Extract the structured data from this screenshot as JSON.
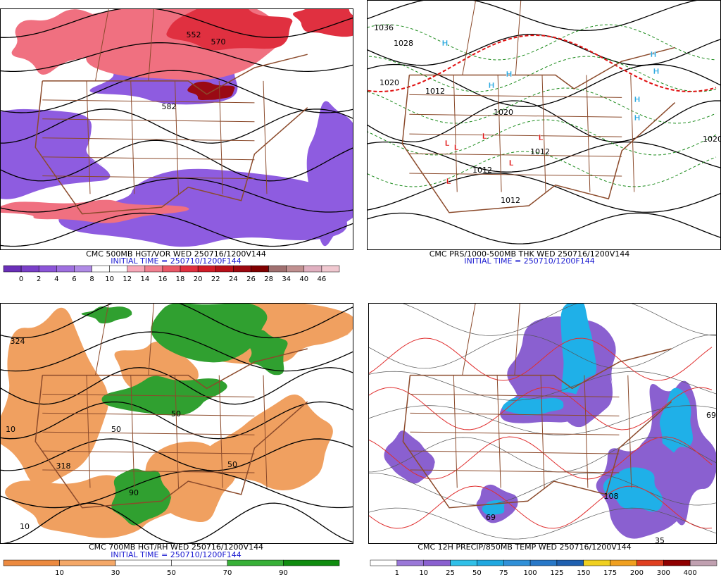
{
  "panels": [
    {
      "title": "CMC 500MB HGT/VOR WED 250716/1200V144",
      "initial_time": "INITIAL TIME = 250710/1200F144",
      "colorbar_labels": [
        "0",
        "2",
        "4",
        "6",
        "8",
        "10",
        "12",
        "14",
        "16",
        "18",
        "20",
        "22",
        "24",
        "26",
        "28",
        "34",
        "40",
        "46"
      ],
      "map_labels": [
        "552",
        "570",
        "582"
      ]
    },
    {
      "title": "CMC PRS/1000-500MB THK WED 250716/1200V144",
      "initial_time": "INITIAL TIME = 250710/1200F144",
      "colorbar_labels": [],
      "map_labels": [
        "1036",
        "1028",
        "1020",
        "1012",
        "1020",
        "1012",
        "1012",
        "1012",
        "1020",
        "H",
        "H",
        "H",
        "H",
        "H",
        "H",
        "H",
        "L",
        "L",
        "L",
        "L",
        "L",
        "L"
      ]
    },
    {
      "title": "CMC 700MB HGT/RH WED 250716/1200V144",
      "initial_time": "INITIAL TIME = 250710/1200F144",
      "colorbar_labels": [
        "10",
        "30",
        "50",
        "70",
        "90"
      ],
      "map_labels": [
        "324",
        "318",
        "10",
        "10",
        "50",
        "50",
        "90",
        "50"
      ]
    },
    {
      "title": "CMC 12H PRECIP/850MB TEMP WED 250716/1200V144",
      "initial_time": "",
      "colorbar_labels": [
        "1",
        "10",
        "25",
        "50",
        "75",
        "100",
        "125",
        "150",
        "175",
        "200",
        "300",
        "400"
      ],
      "map_labels": [
        "69",
        "108",
        "35",
        "69"
      ]
    }
  ]
}
